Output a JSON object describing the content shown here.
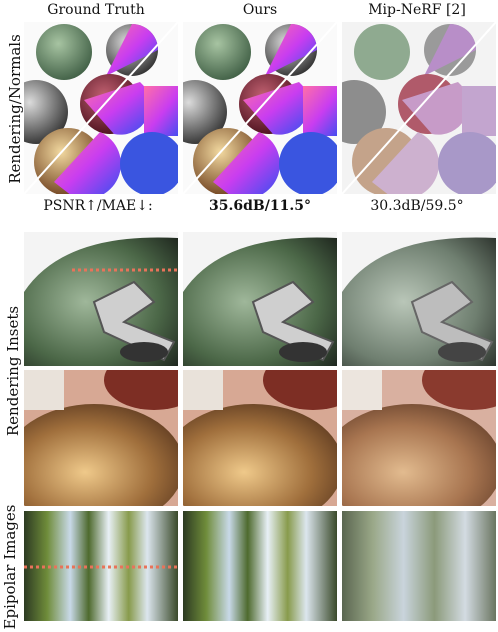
{
  "columns": [
    "Ground Truth",
    "Ours",
    "Mip-NeRF [2]"
  ],
  "rows": [
    "Rendering/Normals",
    "Rendering Insets",
    "Epipolar Images"
  ],
  "metrics": {
    "label": "PSNR↑/MAE↓:",
    "ours": "35.6dB/11.5°",
    "mipnerf": "30.3dB/59.5°"
  }
}
